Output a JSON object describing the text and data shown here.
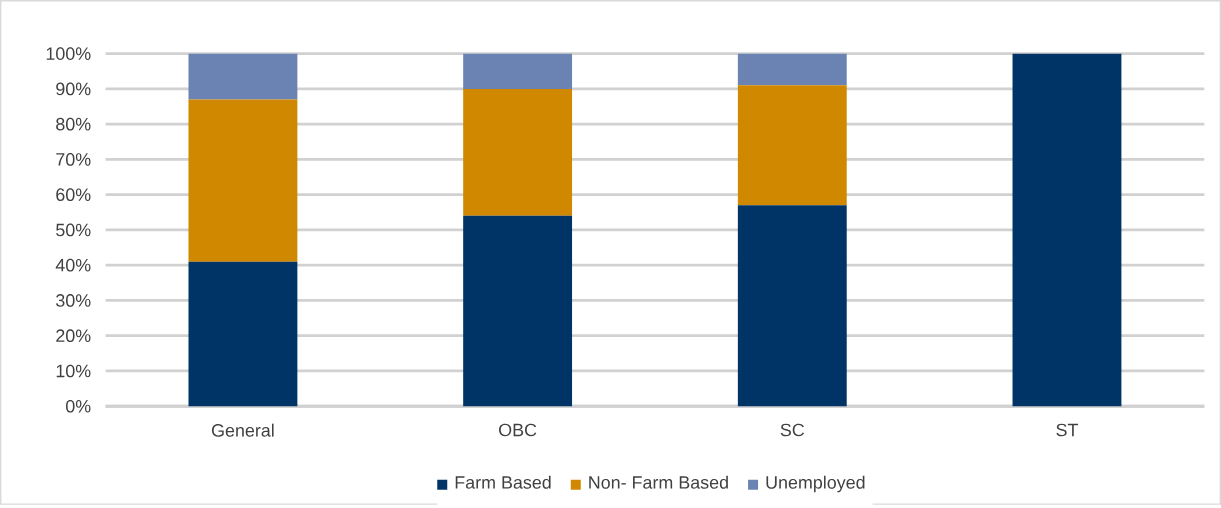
{
  "chart_data": {
    "type": "bar",
    "stacked": true,
    "categories": [
      "General",
      "OBC",
      "SC",
      "ST"
    ],
    "series": [
      {
        "name": "Farm Based",
        "color": "#003366",
        "values": [
          41,
          54,
          57,
          100
        ]
      },
      {
        "name": "Non- Farm Based",
        "color": "#d08800",
        "values": [
          46,
          36,
          34,
          0
        ]
      },
      {
        "name": "Unemployed",
        "color": "#6b83b3",
        "values": [
          13,
          10,
          9,
          0
        ]
      }
    ],
    "ylim": [
      0,
      100
    ],
    "yticks": [
      {
        "value": 0,
        "label": "0%"
      },
      {
        "value": 10,
        "label": "10%"
      },
      {
        "value": 20,
        "label": "20%"
      },
      {
        "value": 30,
        "label": "30%"
      },
      {
        "value": 40,
        "label": "40%"
      },
      {
        "value": 50,
        "label": "50%"
      },
      {
        "value": 60,
        "label": "60%"
      },
      {
        "value": 70,
        "label": "70%"
      },
      {
        "value": 80,
        "label": "80%"
      },
      {
        "value": 90,
        "label": "90%"
      },
      {
        "value": 100,
        "label": "100%"
      }
    ],
    "grid": "y",
    "legend": "bottom"
  }
}
